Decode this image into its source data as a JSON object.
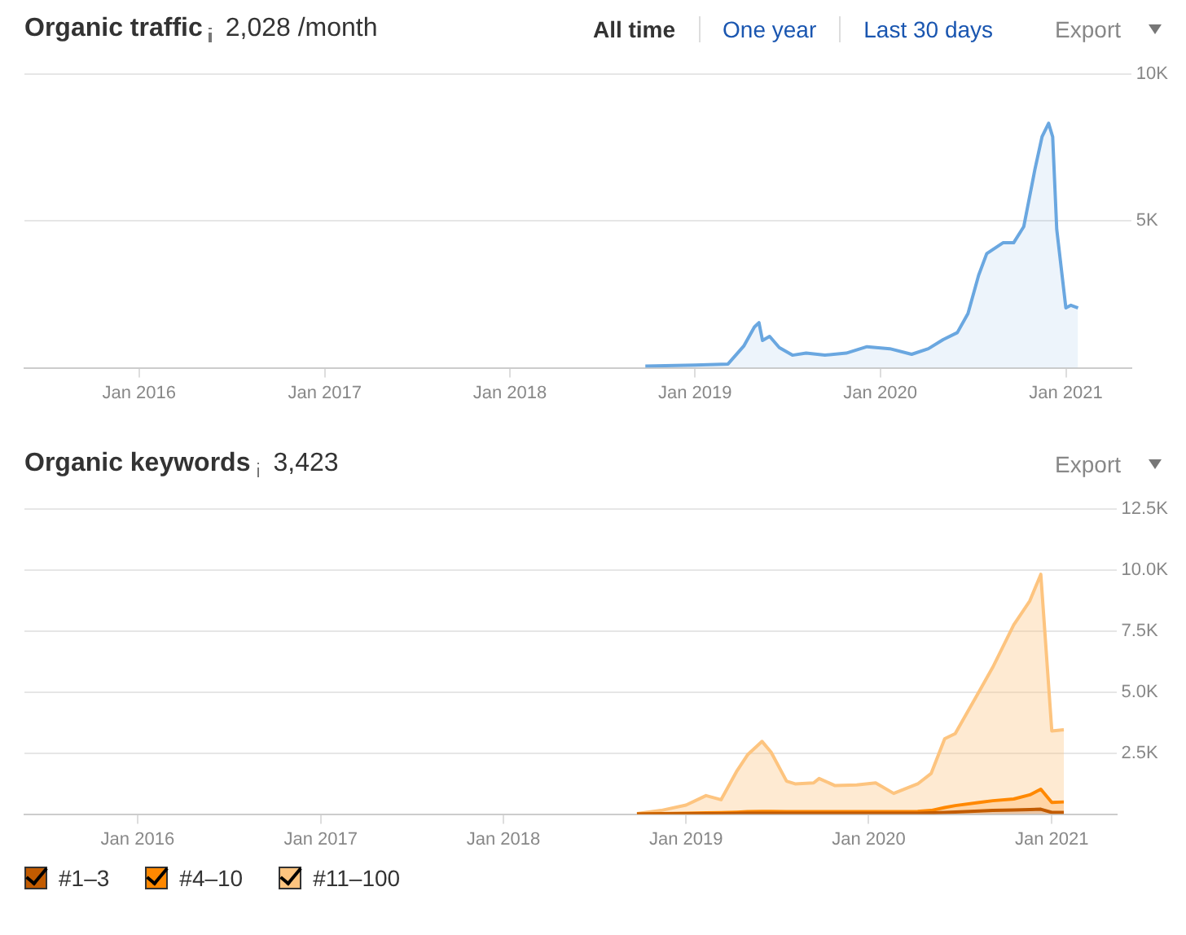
{
  "chart_data": [
    {
      "type": "area",
      "title": "Organic traffic",
      "subtitle": "2,028 /month",
      "annotations": [
        "All time",
        "One year",
        "Last 30 days",
        "Export"
      ],
      "marker": "none",
      "grid": "y",
      "xlim": [
        "2015-05-20",
        "2021-05-10"
      ],
      "xticks": [
        {
          "value": "2016-01-01",
          "label": "Jan 2016"
        },
        {
          "value": "2017-01-01",
          "label": "Jan 2017"
        },
        {
          "value": "2018-01-01",
          "label": "Jan 2018"
        },
        {
          "value": "2019-01-01",
          "label": "Jan 2019"
        },
        {
          "value": "2020-01-01",
          "label": "Jan 2020"
        },
        {
          "value": "2021-01-01",
          "label": "Jan 2021"
        }
      ],
      "ylim": [
        0,
        10000
      ],
      "yticks": [
        {
          "value": 0,
          "label": null
        },
        {
          "value": 5000,
          "label": "5K"
        },
        {
          "value": 10000,
          "label": "10K"
        }
      ],
      "x": [
        "2018-09-25",
        "2019-01-01",
        "2019-03-07",
        "2019-04-07",
        "2019-04-28",
        "2019-05-07",
        "2019-05-14",
        "2019-05-28",
        "2019-06-16",
        "2019-07-12",
        "2019-08-08",
        "2019-09-14",
        "2019-10-26",
        "2019-12-06",
        "2020-01-20",
        "2020-03-03",
        "2020-04-05",
        "2020-05-04",
        "2020-06-01",
        "2020-06-22",
        "2020-07-13",
        "2020-07-29",
        "2020-08-30",
        "2020-09-20",
        "2020-10-10",
        "2020-11-01",
        "2020-11-15",
        "2020-11-28",
        "2020-12-06",
        "2020-12-14",
        "2021-01-01",
        "2021-01-11",
        "2021-01-25"
      ],
      "series": [
        {
          "color": "#6aa7e0",
          "values": [
            60,
            90,
            130,
            740,
            1390,
            1540,
            930,
            1070,
            690,
            430,
            500,
            430,
            500,
            720,
            650,
            460,
            650,
            960,
            1200,
            1850,
            3150,
            3890,
            4260,
            4260,
            4810,
            6760,
            7870,
            8330,
            7870,
            4720,
            2040,
            2130,
            2040
          ]
        }
      ]
    },
    {
      "type": "area",
      "title": "Organic keywords",
      "subtitle": "3,423",
      "annotations": [
        "Export"
      ],
      "marker": "none",
      "grid": "y",
      "stacked": true,
      "legend": "bottom left",
      "xlim": [
        "2015-05-20",
        "2021-05-10"
      ],
      "xticks": [
        {
          "value": "2016-01-01",
          "label": "Jan 2016"
        },
        {
          "value": "2017-01-01",
          "label": "Jan 2017"
        },
        {
          "value": "2018-01-01",
          "label": "Jan 2018"
        },
        {
          "value": "2019-01-01",
          "label": "Jan 2019"
        },
        {
          "value": "2020-01-01",
          "label": "Jan 2020"
        },
        {
          "value": "2021-01-01",
          "label": "Jan 2021"
        }
      ],
      "ylim": [
        0,
        12500
      ],
      "yticks": [
        {
          "value": 0,
          "label": null
        },
        {
          "value": 2500,
          "label": "2.5K"
        },
        {
          "value": 5000,
          "label": "5.0K"
        },
        {
          "value": 7500,
          "label": "7.5K"
        },
        {
          "value": 10000,
          "label": "10.0K"
        },
        {
          "value": 12500,
          "label": "12.5K"
        }
      ],
      "x": [
        "2018-09-25",
        "2018-11-12",
        "2019-01-01",
        "2019-02-10",
        "2019-03-12",
        "2019-04-13",
        "2019-05-04",
        "2019-06-02",
        "2019-06-20",
        "2019-07-21",
        "2019-08-07",
        "2019-09-13",
        "2019-09-24",
        "2019-10-26",
        "2019-12-08",
        "2020-01-15",
        "2020-02-20",
        "2020-04-08",
        "2020-05-05",
        "2020-06-01",
        "2020-06-22",
        "2020-08-09",
        "2020-09-05",
        "2020-10-17",
        "2020-11-18",
        "2020-12-10",
        "2021-01-01",
        "2021-01-25"
      ],
      "series": [
        {
          "name": "#1–3",
          "color": "#c25b00",
          "values": [
            0,
            10,
            20,
            20,
            20,
            30,
            40,
            40,
            40,
            40,
            40,
            40,
            40,
            40,
            40,
            40,
            40,
            40,
            50,
            70,
            90,
            130,
            150,
            170,
            190,
            200,
            70,
            70
          ]
        },
        {
          "name": "#4–10",
          "color": "#ff8800",
          "values": [
            0,
            10,
            20,
            30,
            40,
            50,
            60,
            70,
            70,
            60,
            60,
            60,
            60,
            60,
            60,
            60,
            60,
            70,
            100,
            200,
            260,
            350,
            400,
            450,
            600,
            820,
            410,
            430
          ]
        },
        {
          "name": "#11–100",
          "color": "#fdc47f",
          "values": [
            20,
            130,
            330,
            710,
            530,
            1700,
            2330,
            2870,
            2430,
            1250,
            1140,
            1180,
            1360,
            1070,
            1100,
            1180,
            750,
            1130,
            1520,
            2820,
            2950,
            4560,
            5470,
            7140,
            7950,
            8810,
            2930,
            2960
          ]
        }
      ]
    }
  ]
}
